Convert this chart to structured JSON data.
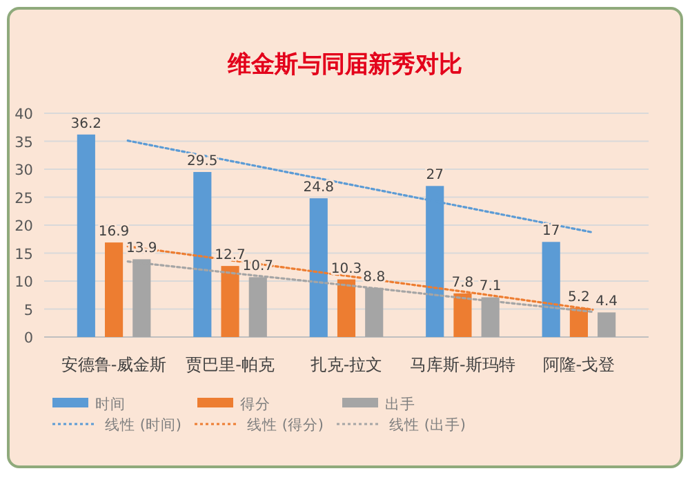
{
  "chart_data": {
    "type": "bar",
    "title": "维金斯与同届新秀对比",
    "categories": [
      "安德鲁-威金斯",
      "贾巴里-帕克",
      "扎克-拉文",
      "马库斯-斯玛特",
      "阿隆-戈登"
    ],
    "series": [
      {
        "name": "时间",
        "color": "#5b9bd5",
        "values": [
          36.2,
          29.5,
          24.8,
          27,
          17
        ],
        "value_labels": [
          "36.2",
          "29.5",
          "24.8",
          "27",
          "17"
        ]
      },
      {
        "name": "得分",
        "color": "#ed7d31",
        "values": [
          16.9,
          12.7,
          10.3,
          7.8,
          5.2
        ],
        "value_labels": [
          "16.9",
          "12.7",
          "10.3",
          "7.8",
          "5.2"
        ]
      },
      {
        "name": "出手",
        "color": "#a5a5a5",
        "values": [
          13.9,
          10.7,
          8.8,
          7.1,
          4.4
        ],
        "value_labels": [
          "13.9",
          "10.7",
          "8.8",
          "7.1",
          "4.4"
        ]
      },
      {
        "name": "线性 (时间)",
        "type": "line",
        "line_style": "dotted",
        "color": "#5b9bd5",
        "values": [
          35.1,
          31.0,
          26.9,
          22.8,
          18.7
        ]
      },
      {
        "name": "线性 (得分)",
        "type": "line",
        "line_style": "dotted",
        "color": "#ed7d31",
        "values": [
          16.2,
          13.4,
          10.6,
          7.8,
          4.9
        ]
      },
      {
        "name": "线性 (出手)",
        "type": "line",
        "line_style": "dotted",
        "color": "#a5a5a5",
        "values": [
          13.5,
          11.2,
          9.0,
          6.7,
          4.5
        ]
      }
    ],
    "ylim": [
      0,
      40
    ],
    "yticks": [
      0,
      5,
      10,
      15,
      20,
      25,
      30,
      35,
      40
    ],
    "grid": "y",
    "legend": "bottom"
  }
}
